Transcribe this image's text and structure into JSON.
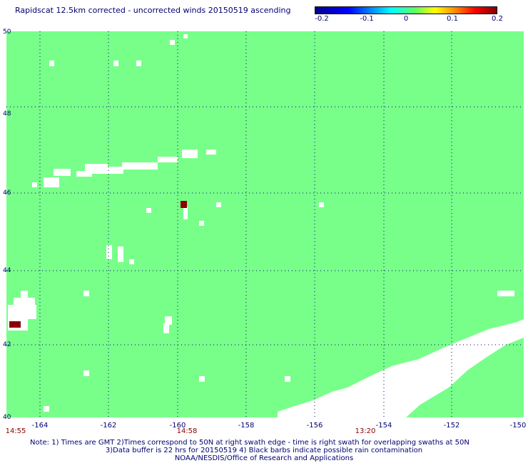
{
  "title": "Rapidscat 12.5km corrected - uncorrected winds 20150519 ascending",
  "colorbar": {
    "ticks": [
      "-0.2",
      "-0.1",
      "0",
      "0.1",
      "0.2"
    ],
    "colors": [
      "#000090",
      "#0000ff",
      "#00ffff",
      "#60ff60",
      "#ffff00",
      "#ff0000",
      "#800000"
    ]
  },
  "map": {
    "background_color": "#78ff8a",
    "no_data_color": "#ffffff",
    "extreme_color": "#8b0000",
    "lat_labels": [
      "50",
      "48",
      "46",
      "44",
      "42",
      "40"
    ],
    "lon_labels": [
      "-164",
      "-162",
      "-160",
      "-158",
      "-156",
      "-154",
      "-152",
      "-150"
    ],
    "time_labels": [
      "14:55",
      "14:58",
      "13:20"
    ],
    "lat_range": [
      40,
      50
    ],
    "lon_range": [
      -165,
      -150
    ]
  },
  "notes": {
    "line1": "Note: 1) Times are GMT 2)Times correspond to 50N at right swath edge - time is right swath for overlapping swaths at 50N",
    "line2": "3)Data buffer is 22 hrs for 20150519 4) Black barbs indicate possible rain contamination",
    "line3": "NOAA/NESDIS/Office of Research and Applications"
  }
}
